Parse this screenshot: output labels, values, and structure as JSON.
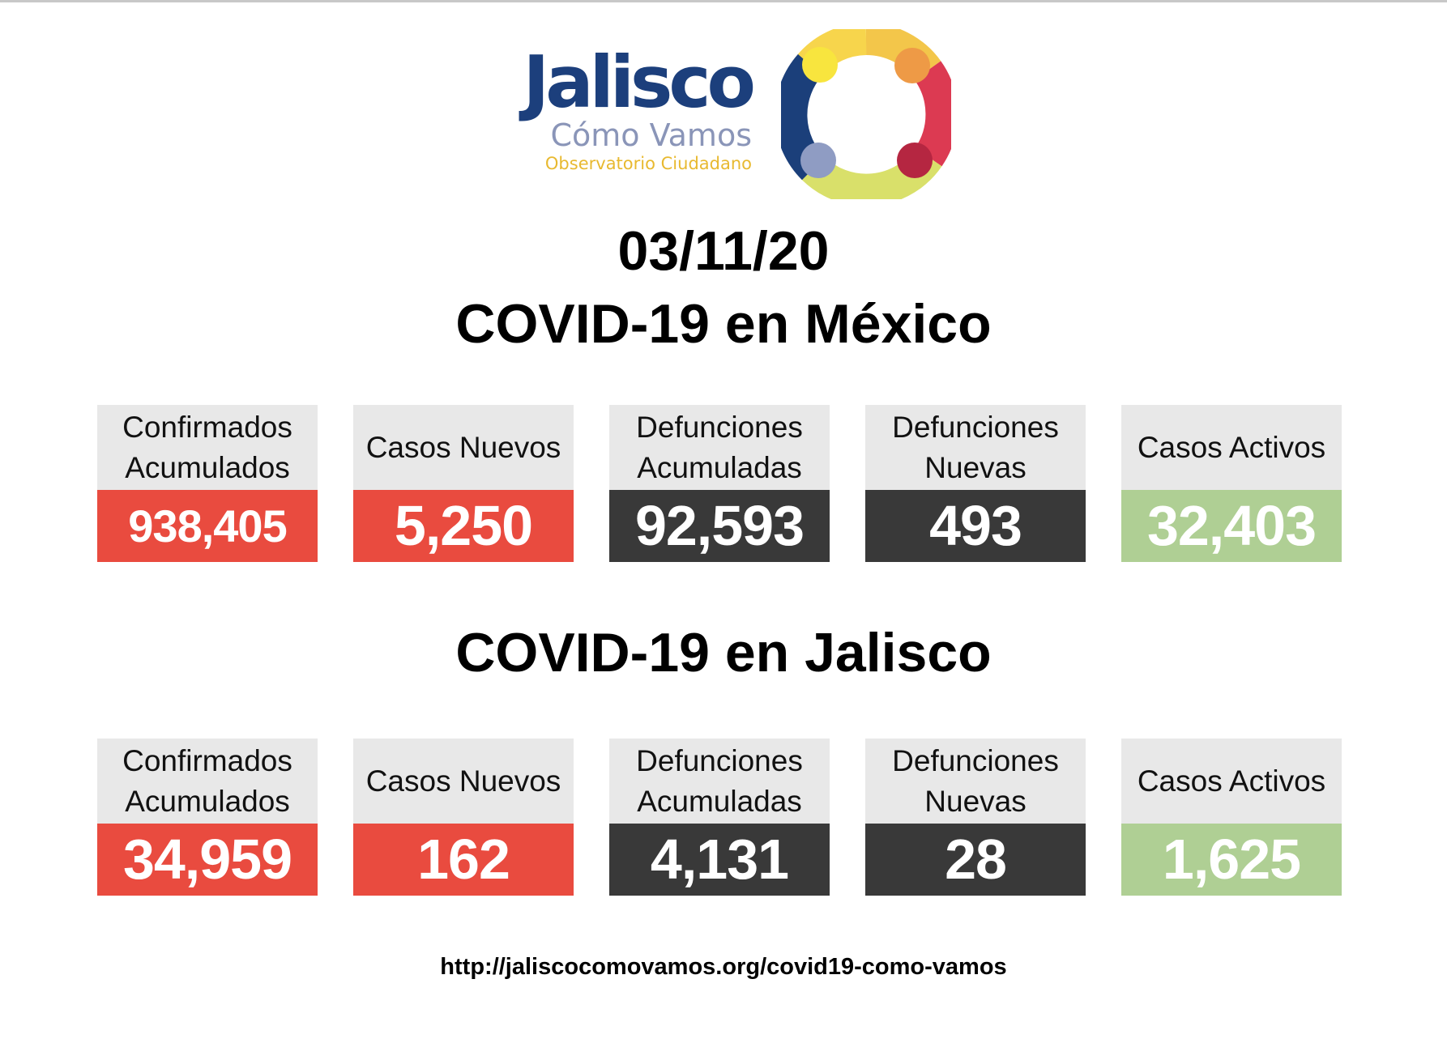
{
  "logo": {
    "title": "Jalisco",
    "subtitle": "Cómo Vamos",
    "tagline": "Observatorio Ciudadano"
  },
  "date": "03/11/20",
  "mexico": {
    "heading": "COVID-19 en México",
    "cards": [
      {
        "label": "Confirmados\nAcumulados",
        "value": "938,405",
        "color": "#e94b3f"
      },
      {
        "label": "Casos Nuevos",
        "value": "5,250",
        "color": "#e94b3f"
      },
      {
        "label": "Defunciones\nAcumuladas",
        "value": "92,593",
        "color": "#393939"
      },
      {
        "label": "Defunciones\nNuevas",
        "value": "493",
        "color": "#393939"
      },
      {
        "label": "Casos Activos",
        "value": "32,403",
        "color": "#afcf94"
      }
    ]
  },
  "jalisco": {
    "heading": "COVID-19 en Jalisco",
    "cards": [
      {
        "label": "Confirmados\nAcumulados",
        "value": "34,959",
        "color": "#e94b3f"
      },
      {
        "label": "Casos Nuevos",
        "value": "162",
        "color": "#e94b3f"
      },
      {
        "label": "Defunciones\nAcumuladas",
        "value": "4,131",
        "color": "#393939"
      },
      {
        "label": "Defunciones\nNuevas",
        "value": "28",
        "color": "#393939"
      },
      {
        "label": "Casos Activos",
        "value": "1,625",
        "color": "#afcf94"
      }
    ]
  },
  "footer": {
    "url": "http://jaliscocomovamos.org/covid19-como-vamos"
  }
}
